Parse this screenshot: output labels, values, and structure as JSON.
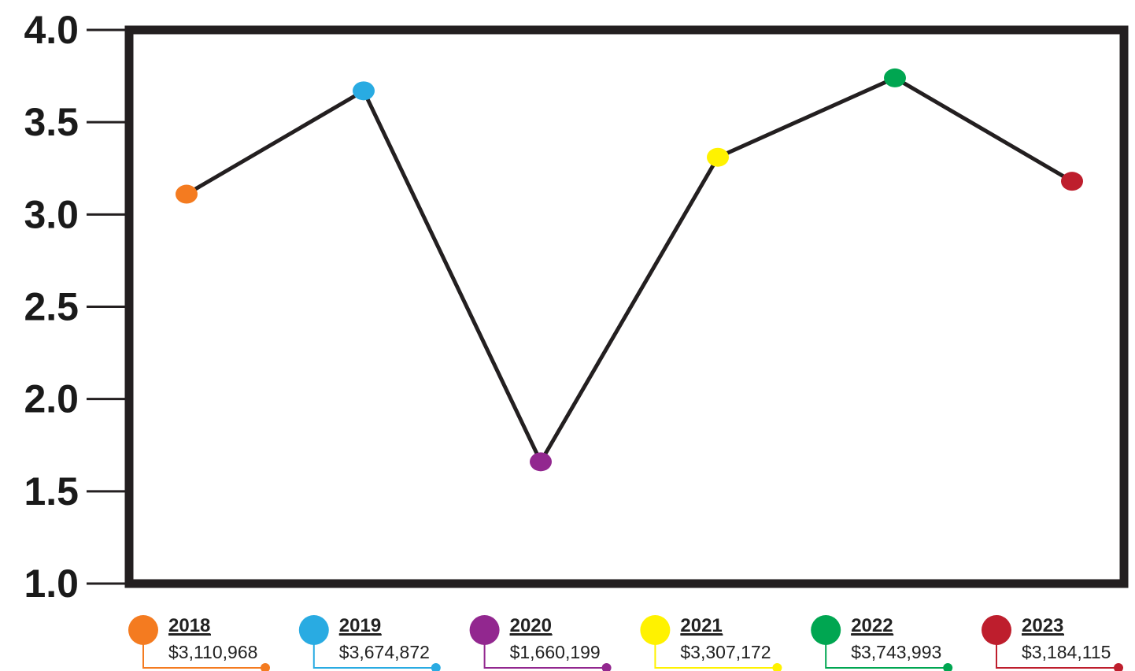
{
  "chart_data": {
    "type": "line",
    "title": "",
    "xlabel": "",
    "ylabel": "",
    "categories": [
      "2018",
      "2019",
      "2020",
      "2021",
      "2022",
      "2023"
    ],
    "values": [
      3.11,
      3.67,
      1.66,
      3.31,
      3.74,
      3.18
    ],
    "ylim": [
      1.0,
      4.0
    ],
    "yticks": [
      1.0,
      1.5,
      2.0,
      2.5,
      3.0,
      3.5,
      4.0
    ],
    "ytick_labels": [
      "1.0",
      "1.5",
      "2.0",
      "2.5",
      "3.0",
      "3.5",
      "4.0"
    ],
    "grid": false,
    "line_color": "#231f20",
    "point_colors": [
      "#f47b20",
      "#29abe2",
      "#92278f",
      "#fff200",
      "#00a651",
      "#be1e2d"
    ],
    "legend_position": "bottom",
    "legend": [
      {
        "year": "2018",
        "amount": "$3,110,968",
        "color": "#f47b20"
      },
      {
        "year": "2019",
        "amount": "$3,674,872",
        "color": "#29abe2"
      },
      {
        "year": "2020",
        "amount": "$1,660,199",
        "color": "#92278f"
      },
      {
        "year": "2021",
        "amount": "$3,307,172",
        "color": "#fff200"
      },
      {
        "year": "2022",
        "amount": "$3,743,993",
        "color": "#00a651"
      },
      {
        "year": "2023",
        "amount": "$3,184,115",
        "color": "#be1e2d"
      }
    ]
  }
}
